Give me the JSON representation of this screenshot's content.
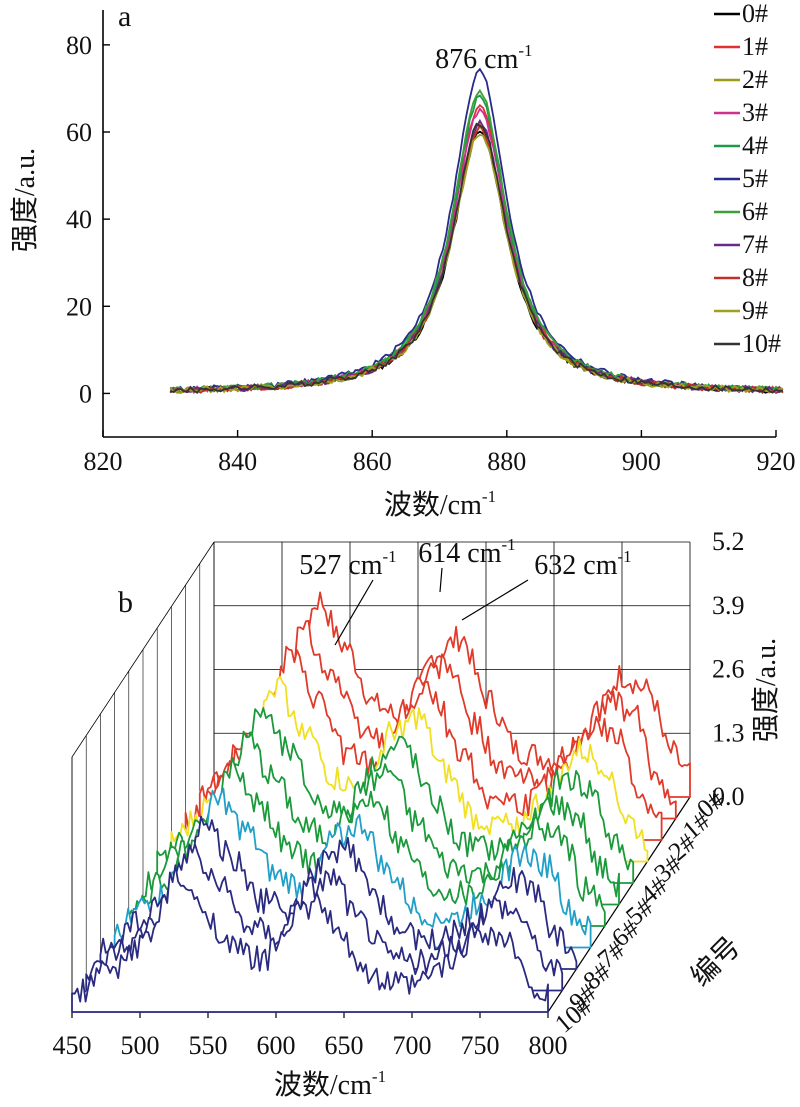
{
  "chart_data": [
    {
      "type": "line",
      "panel_label": "a",
      "xlabel": "波数/cm",
      "xlabel_sup": "-1",
      "ylabel": "强度/a.u.",
      "xlim": [
        820,
        920
      ],
      "ylim": [
        -10,
        88
      ],
      "xticks": [
        "820",
        "840",
        "860",
        "880",
        "900",
        "920"
      ],
      "yticks": [
        "0",
        "20",
        "40",
        "60",
        "80"
      ],
      "annotation": {
        "text": "876 cm",
        "sup": "-1",
        "x": 876
      },
      "peak_center": 876,
      "x_range": [
        830,
        921
      ],
      "legend_position": "right",
      "series": [
        {
          "name": "0#",
          "color": "#000000",
          "peak": 60
        },
        {
          "name": "1#",
          "color": "#e03030",
          "peak": 66
        },
        {
          "name": "2#",
          "color": "#9a9a1a",
          "peak": 61
        },
        {
          "name": "3#",
          "color": "#d03090",
          "peak": 65
        },
        {
          "name": "4#",
          "color": "#1a9a4a",
          "peak": 68
        },
        {
          "name": "5#",
          "color": "#2a2a8a",
          "peak": 74
        },
        {
          "name": "6#",
          "color": "#3aa03a",
          "peak": 69
        },
        {
          "name": "7#",
          "color": "#6a2a8a",
          "peak": 62
        },
        {
          "name": "8#",
          "color": "#c0302a",
          "peak": 61
        },
        {
          "name": "9#",
          "color": "#a0a020",
          "peak": 60
        },
        {
          "name": "10#",
          "color": "#333333",
          "peak": 62
        }
      ]
    },
    {
      "type": "line",
      "panel_label": "b",
      "xlabel": "波数/cm",
      "xlabel_sup": "-1",
      "zlabel": "强度/a.u.",
      "depth_label": "编号",
      "xlim": [
        450,
        800
      ],
      "xticks": [
        "450",
        "500",
        "550",
        "600",
        "650",
        "700",
        "750",
        "800"
      ],
      "zticks": [
        "0.0",
        "1.3",
        "2.6",
        "3.9",
        "5.2"
      ],
      "zlim": [
        0,
        5.2
      ],
      "annotations": [
        {
          "text": "527 cm",
          "sup": "-1",
          "x": 527
        },
        {
          "text": "614 cm",
          "sup": "-1",
          "x": 614
        },
        {
          "text": "632 cm",
          "sup": "-1",
          "x": 632
        }
      ],
      "series": [
        {
          "name": "0#",
          "color": "#e03a2a"
        },
        {
          "name": "1#",
          "color": "#e03a2a"
        },
        {
          "name": "2#",
          "color": "#e03a2a"
        },
        {
          "name": "3#",
          "color": "#f0e020"
        },
        {
          "name": "4#",
          "color": "#1a9a3a"
        },
        {
          "name": "5#",
          "color": "#1a9a3a"
        },
        {
          "name": "6#",
          "color": "#1a9a3a"
        },
        {
          "name": "7#",
          "color": "#20a0c8"
        },
        {
          "name": "8#",
          "color": "#2a2a80"
        },
        {
          "name": "9#",
          "color": "#2a2a80"
        },
        {
          "name": "10#",
          "color": "#2a2a80"
        }
      ],
      "peak_profile_x": [
        450,
        478,
        505,
        527,
        545,
        570,
        590,
        614,
        632,
        650,
        675,
        700,
        725,
        750,
        770,
        785,
        800
      ],
      "peak_profile_z": [
        0.3,
        0.8,
        1.4,
        2.6,
        2.0,
        1.2,
        1.0,
        1.9,
        2.1,
        1.3,
        0.6,
        0.5,
        0.9,
        1.6,
        1.4,
        0.6,
        0.3
      ]
    }
  ]
}
